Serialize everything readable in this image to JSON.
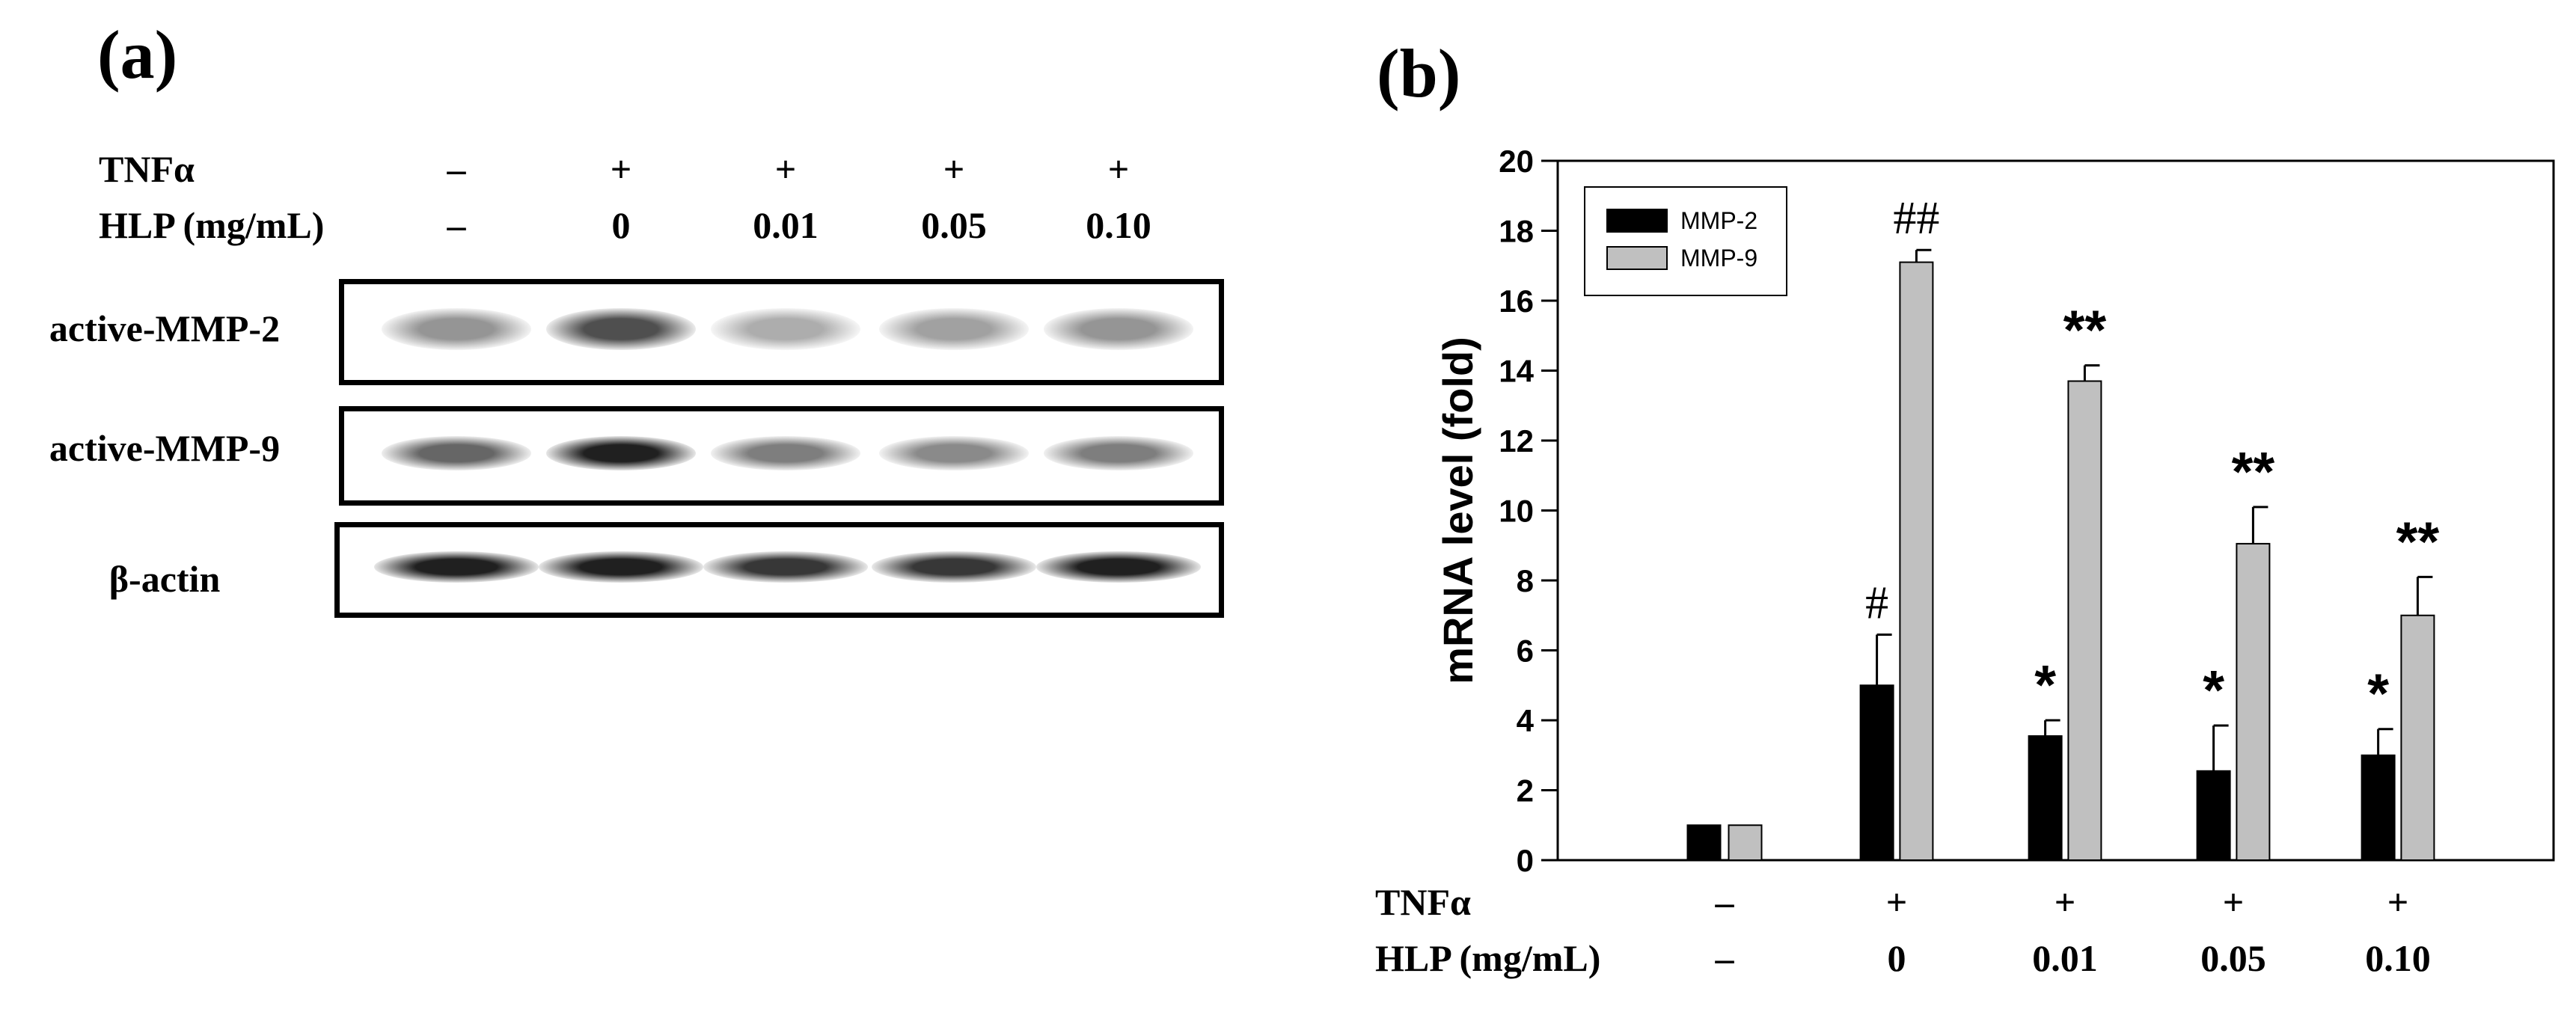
{
  "panel_a": {
    "label": "(a)",
    "treatment_labels": {
      "tnf": "TNFα",
      "hlp": "HLP (mg/mL)"
    },
    "tnf_values": [
      "–",
      "+",
      "+",
      "+",
      "+"
    ],
    "hlp_values": [
      "–",
      "0",
      "0.01",
      "0.05",
      "0.10"
    ],
    "blots": [
      {
        "label": "active-MMP-2",
        "band_intensity": [
          0.45,
          0.75,
          0.35,
          0.4,
          0.45
        ]
      },
      {
        "label": "active-MMP-9",
        "band_intensity": [
          0.65,
          0.95,
          0.55,
          0.5,
          0.55
        ]
      },
      {
        "label": "β-actin",
        "band_intensity": [
          0.95,
          0.95,
          0.85,
          0.85,
          0.95
        ]
      }
    ]
  },
  "panel_b": {
    "label": "(b)",
    "treatment_labels": {
      "tnf": "TNFα",
      "hlp": "HLP (mg/mL)"
    },
    "tnf_values": [
      "–",
      "+",
      "+",
      "+",
      "+"
    ],
    "hlp_values": [
      "–",
      "0",
      "0.01",
      "0.05",
      "0.10"
    ]
  },
  "chart_data": {
    "type": "bar",
    "ylabel": "mRNA level (fold)",
    "ylim": [
      0,
      20
    ],
    "yticks": [
      0,
      2,
      4,
      6,
      8,
      10,
      12,
      14,
      16,
      18,
      20
    ],
    "categories": [
      "–/–",
      "+/0",
      "+/0.01",
      "+/0.05",
      "+/0.10"
    ],
    "legend_position": "top-left",
    "series": [
      {
        "name": "MMP-2",
        "color": "#000000",
        "values": [
          1.0,
          5.0,
          3.55,
          2.55,
          3.0
        ],
        "errors": [
          0,
          1.45,
          0.45,
          1.3,
          0.75
        ],
        "annotations": [
          "",
          "#",
          "*",
          "*",
          "*"
        ]
      },
      {
        "name": "MMP-9",
        "color": "#c0c0c0",
        "values": [
          1.0,
          17.1,
          13.7,
          9.05,
          7.0
        ],
        "errors": [
          0,
          0.35,
          0.45,
          1.05,
          1.1
        ],
        "annotations": [
          "",
          "##",
          "**",
          "**",
          "**"
        ]
      }
    ]
  }
}
